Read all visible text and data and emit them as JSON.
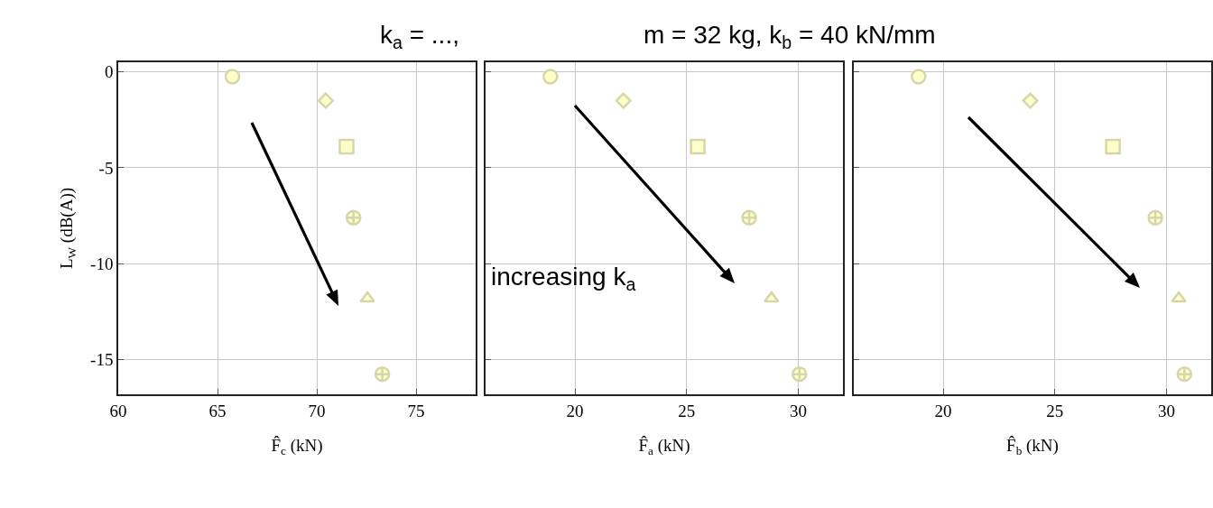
{
  "chart_data": [
    {
      "type": "scatter",
      "title": "k$_{a}$ = ...,",
      "xlabel": "F̂$_{c}$ (kN)",
      "ylabel": "L$_{W}$ (dB(A))",
      "xlim": [
        60,
        78
      ],
      "xticks": [
        60,
        65,
        70,
        75
      ],
      "ylim": [
        -16.8,
        0.5
      ],
      "yticks": [
        0,
        -5,
        -10,
        -15
      ],
      "grid": true,
      "series": [
        {
          "x": [
            65.75
          ],
          "values": [
            -0.25
          ],
          "marker": "circle",
          "color": "#ffffcc"
        },
        {
          "x": [
            70.45
          ],
          "values": [
            -1.5
          ],
          "marker": "diamond",
          "color": "#ffffcc"
        },
        {
          "x": [
            71.5
          ],
          "values": [
            -3.9
          ],
          "marker": "square",
          "color": "#ffffcc"
        },
        {
          "x": [
            71.85
          ],
          "values": [
            -7.6
          ],
          "marker": "cross",
          "color": "#ffffcc"
        },
        {
          "x": [
            72.55
          ],
          "values": [
            -11.8
          ],
          "marker": "triangle",
          "color": "#ffffcc"
        },
        {
          "x": [
            73.3
          ],
          "values": [
            -15.75
          ],
          "marker": "cross",
          "color": "#ffffcc"
        }
      ]
    },
    {
      "type": "scatter",
      "title": "m = 32 kg, k$_{b}$ = 40 kN/mm",
      "xlabel": "F̂$_{a}$ (kN)",
      "xlim": [
        16,
        32
      ],
      "xticks": [
        20,
        25,
        30
      ],
      "ylim": [
        -16.8,
        0.5
      ],
      "yticks": [
        0,
        -5,
        -10,
        -15
      ],
      "grid": true,
      "tick_labels": "x",
      "annotations": [
        "increasing k$_{a}$"
      ],
      "series": [
        {
          "x": [
            18.9
          ],
          "values": [
            -0.25
          ],
          "marker": "circle",
          "color": "#ffffcc"
        },
        {
          "x": [
            22.17
          ],
          "values": [
            -1.5
          ],
          "marker": "diamond",
          "color": "#ffffcc"
        },
        {
          "x": [
            25.5
          ],
          "values": [
            -3.9
          ],
          "marker": "square",
          "color": "#ffffcc"
        },
        {
          "x": [
            27.8
          ],
          "values": [
            -7.6
          ],
          "marker": "cross",
          "color": "#ffffcc"
        },
        {
          "x": [
            28.8
          ],
          "values": [
            -11.8
          ],
          "marker": "triangle",
          "color": "#ffffcc"
        },
        {
          "x": [
            30.05
          ],
          "values": [
            -15.75
          ],
          "marker": "cross",
          "color": "#ffffcc"
        }
      ]
    },
    {
      "type": "scatter",
      "xlabel": "F̂$_{b}$ (kN)",
      "xlim": [
        16,
        32
      ],
      "xticks": [
        20,
        25,
        30
      ],
      "ylim": [
        -16.8,
        0.5
      ],
      "yticks": [
        0,
        -5,
        -10,
        -15
      ],
      "grid": true,
      "tick_labels": "x",
      "series": [
        {
          "x": [
            18.9
          ],
          "values": [
            -0.25
          ],
          "marker": "circle",
          "color": "#ffffcc"
        },
        {
          "x": [
            23.9
          ],
          "values": [
            -1.5
          ],
          "marker": "diamond",
          "color": "#ffffcc"
        },
        {
          "x": [
            27.6
          ],
          "values": [
            -3.9
          ],
          "marker": "square",
          "color": "#ffffcc"
        },
        {
          "x": [
            29.5
          ],
          "values": [
            -7.6
          ],
          "marker": "cross",
          "color": "#ffffcc"
        },
        {
          "x": [
            30.55
          ],
          "values": [
            -11.8
          ],
          "marker": "triangle",
          "color": "#ffffcc"
        },
        {
          "x": [
            30.8
          ],
          "values": [
            -15.75
          ],
          "marker": "cross",
          "color": "#ffffcc"
        }
      ]
    }
  ]
}
